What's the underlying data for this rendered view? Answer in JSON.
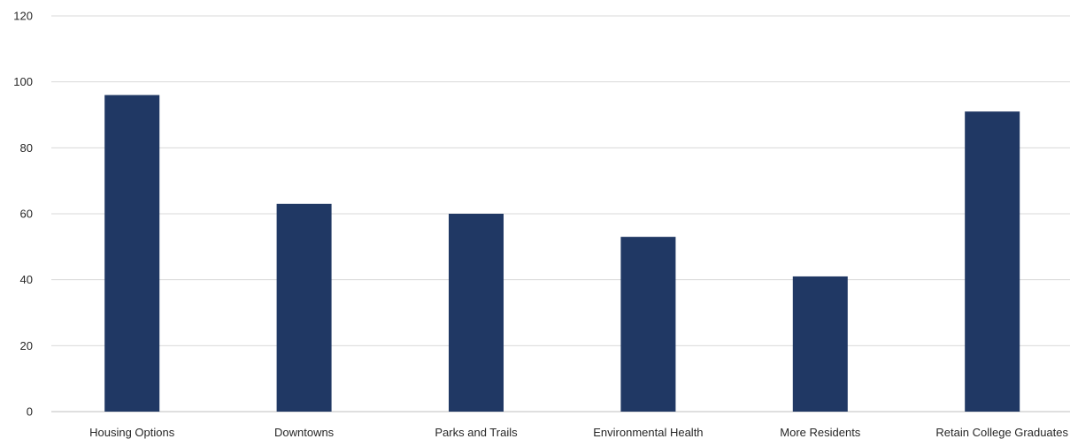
{
  "chart_data": {
    "type": "bar",
    "title": "",
    "xlabel": "",
    "ylabel": "",
    "categories": [
      "Housing Options",
      "Downtowns",
      "Parks and Trails",
      "Environmental Health",
      "More Residents",
      "Retain College Graduates"
    ],
    "values": [
      96,
      63,
      60,
      53,
      41,
      91
    ],
    "ylim": [
      0,
      120
    ],
    "yticks": [
      0,
      20,
      40,
      60,
      80,
      100,
      120
    ],
    "grid": true,
    "legend": "none",
    "bar_color": "#203864"
  }
}
